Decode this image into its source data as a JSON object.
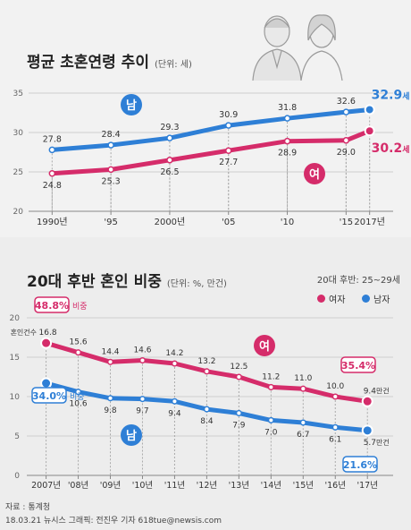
{
  "colors": {
    "male": "#2e7fd6",
    "female": "#d52c6a",
    "grid": "#cfcfcf",
    "label": "#444"
  },
  "chart_data": [
    {
      "type": "line",
      "title": "평균 초혼연령 추이",
      "unit_note": "(단위: 세)",
      "x_tick_labels": [
        "1990년",
        "'95",
        "2000년",
        "'05",
        "'10",
        "'15",
        "2017년"
      ],
      "x_ticks": [
        1990,
        1995,
        2000,
        2005,
        2010,
        2015,
        2017
      ],
      "x_range": [
        1988,
        2019
      ],
      "y_ticks": [
        20,
        25,
        30,
        35
      ],
      "ylim": [
        20,
        35
      ],
      "series": [
        {
          "name": "남",
          "color_key": "male",
          "points": [
            {
              "x": 1990,
              "y": 27.8,
              "label": "27.8"
            },
            {
              "x": 1995,
              "y": 28.4,
              "label": "28.4"
            },
            {
              "x": 2000,
              "y": 29.3,
              "label": "29.3"
            },
            {
              "x": 2005,
              "y": 30.9,
              "label": "30.9"
            },
            {
              "x": 2010,
              "y": 31.8,
              "label": "31.8"
            },
            {
              "x": 2015,
              "y": 32.6,
              "label": "32.6"
            },
            {
              "x": 2017,
              "y": 32.9,
              "label": "32.9"
            }
          ],
          "end_value": "32.9",
          "end_unit": "세"
        },
        {
          "name": "여",
          "color_key": "female",
          "points": [
            {
              "x": 1990,
              "y": 24.8,
              "label": "24.8"
            },
            {
              "x": 1995,
              "y": 25.3,
              "label": "25.3"
            },
            {
              "x": 2000,
              "y": 26.5,
              "label": "26.5"
            },
            {
              "x": 2005,
              "y": 27.7,
              "label": "27.7"
            },
            {
              "x": 2010,
              "y": 28.9,
              "label": "28.9"
            },
            {
              "x": 2015,
              "y": 29.0,
              "label": "29.0"
            },
            {
              "x": 2017,
              "y": 30.2,
              "label": "30.2"
            }
          ],
          "end_value": "30.2",
          "end_unit": "세"
        }
      ]
    },
    {
      "type": "line",
      "title": "20대 후반 혼인 비중",
      "unit_note": "(단위: %, 만건)",
      "range_note": "20대 후반: 25~29세",
      "legend": [
        {
          "label": "여자",
          "color_key": "female"
        },
        {
          "label": "남자",
          "color_key": "male"
        }
      ],
      "x_tick_labels": [
        "2007년",
        "'08년",
        "'09년",
        "'10년",
        "'11년",
        "'12년",
        "'13년",
        "'14년",
        "'15년",
        "'16년",
        "'17년"
      ],
      "x_ticks": [
        2007,
        2008,
        2009,
        2010,
        2011,
        2012,
        2013,
        2014,
        2015,
        2016,
        2017
      ],
      "x_range": [
        2006.4,
        2017.8
      ],
      "y_ticks": [
        0,
        5,
        10,
        15,
        20
      ],
      "ylim": [
        0,
        20
      ],
      "counts_label": "혼인건수",
      "counts": [
        {
          "x": 2007,
          "value": "16.8"
        },
        {
          "x": 2008,
          "value": "15.6"
        },
        {
          "x": 2009,
          "value": "14.4"
        },
        {
          "x": 2010,
          "value": "14.6"
        },
        {
          "x": 2011,
          "value": "14.2"
        },
        {
          "x": 2012,
          "value": "13.2"
        },
        {
          "x": 2013,
          "value": "12.5"
        },
        {
          "x": 2014,
          "value": "11.2"
        },
        {
          "x": 2015,
          "value": "11.0"
        },
        {
          "x": 2016,
          "value": "10.0"
        },
        {
          "x": 2017,
          "value": "9.4"
        }
      ],
      "counts_unit": "만건",
      "male_counts": [
        {
          "x": 2007,
          "value": "11.7"
        },
        {
          "x": 2008,
          "value": "10.6"
        },
        {
          "x": 2009,
          "value": "9.8"
        },
        {
          "x": 2010,
          "value": "9.7"
        },
        {
          "x": 2011,
          "value": "9.4"
        },
        {
          "x": 2012,
          "value": "8.4"
        },
        {
          "x": 2013,
          "value": "7.9"
        },
        {
          "x": 2014,
          "value": "7.0"
        },
        {
          "x": 2015,
          "value": "6.7"
        },
        {
          "x": 2016,
          "value": "6.1"
        },
        {
          "x": 2017,
          "value": "5.7"
        }
      ],
      "series": [
        {
          "name": "여",
          "color_key": "female",
          "y": [
            16.8,
            15.6,
            14.4,
            14.6,
            14.2,
            13.2,
            12.5,
            11.2,
            11.0,
            10.0,
            9.4
          ],
          "start_share": "48.8%",
          "end_share": "35.4%"
        },
        {
          "name": "남",
          "color_key": "male",
          "y": [
            11.7,
            10.6,
            9.8,
            9.7,
            9.4,
            8.4,
            7.9,
            7.0,
            6.7,
            6.1,
            5.7
          ],
          "start_share": "34.0%",
          "end_share": "21.6%"
        }
      ],
      "share_label": "비중"
    }
  ],
  "footer": {
    "source": "자료 : 통계청",
    "credit": "18.03.21 뉴시스 그래픽: 전진우 기자 618tue@newsis.com"
  },
  "badges": {
    "male": "남",
    "female": "여"
  }
}
